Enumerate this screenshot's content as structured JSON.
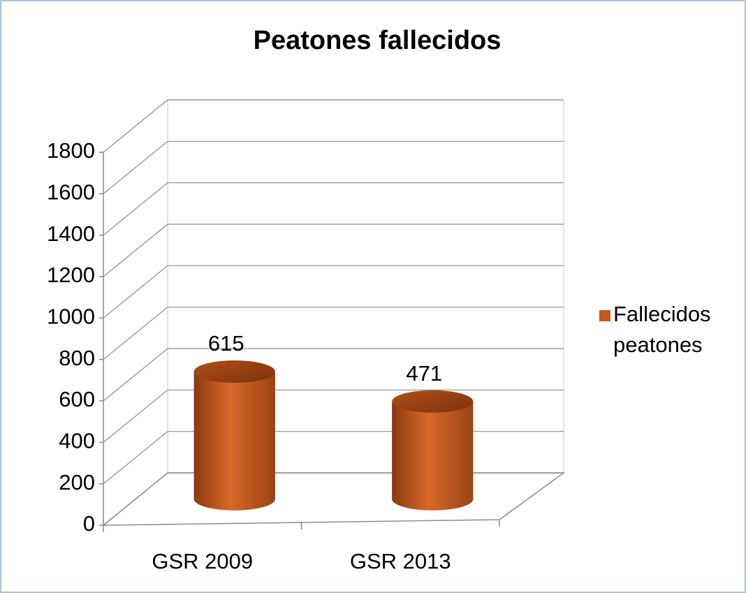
{
  "chart_data": {
    "type": "bar",
    "title": "Peatones fallecidos",
    "categories": [
      "GSR 2009",
      "GSR 2013"
    ],
    "series": [
      {
        "name": "Fallecidos peatones",
        "color": "#c55a1c",
        "values": [
          615,
          471
        ]
      }
    ],
    "ylim": [
      0,
      1800
    ],
    "yticks": [
      0,
      200,
      400,
      600,
      800,
      1000,
      1200,
      1400,
      1600,
      1800
    ],
    "grid": true,
    "legend": "right"
  }
}
